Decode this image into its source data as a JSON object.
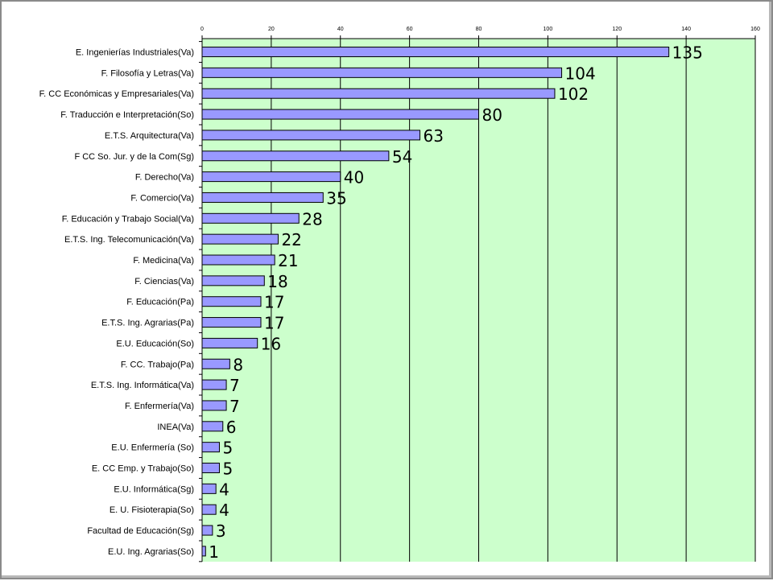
{
  "chart_data": {
    "type": "bar",
    "orientation": "horizontal",
    "categories": [
      "E. Ingenierías Industriales(Va)",
      "F. Filosofía y Letras(Va)",
      "F. CC Económicas y Empresariales(Va)",
      "F. Traducción e Interpretación(So)",
      "E.T.S. Arquitectura(Va)",
      "F CC So. Jur. y de la Com(Sg)",
      "F. Derecho(Va)",
      "F. Comercio(Va)",
      "F. Educación y Trabajo Social(Va)",
      "E.T.S. Ing. Telecomunicación(Va)",
      "F. Medicina(Va)",
      "F. Ciencias(Va)",
      "F. Educación(Pa)",
      "E.T.S. Ing. Agrarias(Pa)",
      "E.U. Educación(So)",
      "F. CC. Trabajo(Pa)",
      "E.T.S. Ing. Informática(Va)",
      "F. Enfermería(Va)",
      "INEA(Va)",
      "E.U. Enfermería (So)",
      "E. CC Emp. y Trabajo(So)",
      "E.U. Informática(Sg)",
      "E. U. Fisioterapia(So)",
      "Facultad de Educación(Sg)",
      "E.U. Ing. Agrarias(So)"
    ],
    "values": [
      135,
      104,
      102,
      80,
      63,
      54,
      40,
      35,
      28,
      22,
      21,
      18,
      17,
      17,
      16,
      8,
      7,
      7,
      6,
      5,
      5,
      4,
      4,
      3,
      1
    ],
    "data_labels": [
      "135",
      "104",
      "102",
      "80",
      "63",
      "54",
      "40",
      "35",
      "28",
      "22",
      "21",
      "18",
      "17",
      "17",
      "16",
      "8",
      "7",
      "7",
      "6",
      "5",
      "5",
      "4",
      "4",
      "3",
      "1"
    ],
    "x_ticks": [
      "0",
      "20",
      "40",
      "60",
      "80",
      "100",
      "120",
      "140",
      "160"
    ],
    "xlim": [
      0,
      160
    ],
    "x_axis_position": "top",
    "grid": "vertical",
    "legend": "none",
    "title": "",
    "xlabel": "",
    "ylabel": "",
    "colors": {
      "bar_fill": "#9999ff",
      "bar_stroke": "#000000",
      "plot_background": "#ccffcc",
      "gridline": "#000000"
    }
  }
}
